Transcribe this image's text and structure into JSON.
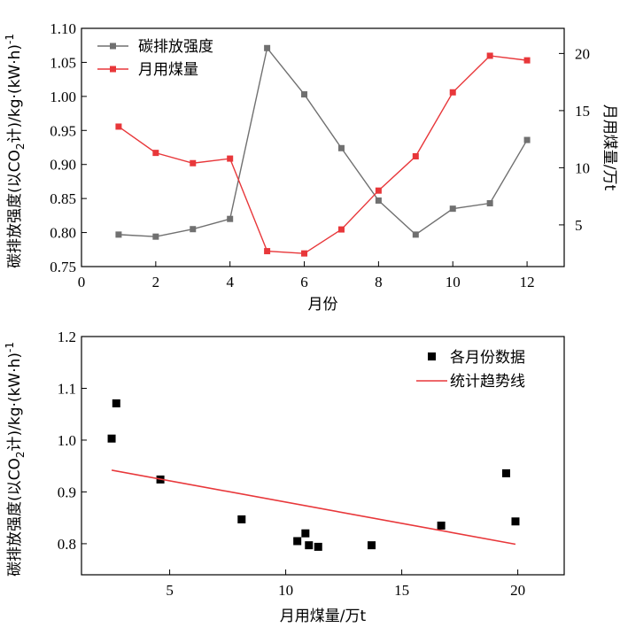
{
  "chart_data": [
    {
      "type": "line",
      "x": [
        1,
        2,
        3,
        4,
        5,
        6,
        7,
        8,
        9,
        10,
        11,
        12
      ],
      "xlabel": "月份",
      "xlim": [
        0,
        13
      ],
      "xticks": [
        "0",
        "2",
        "4",
        "6",
        "8",
        "10",
        "12"
      ],
      "xtick_values": [
        0,
        2,
        4,
        6,
        8,
        10,
        12
      ],
      "ylabel_left_parts": [
        "碳排放强度(以CO",
        "2",
        "计)/kg·(kW·h)",
        "-1"
      ],
      "ylim_left": [
        0.75,
        1.1
      ],
      "yticks_left": [
        "0.75",
        "0.80",
        "0.85",
        "0.90",
        "0.95",
        "1.00",
        "1.05",
        "1.10"
      ],
      "ytick_values_left": [
        0.75,
        0.8,
        0.85,
        0.9,
        0.95,
        1.0,
        1.05,
        1.1
      ],
      "ylabel_right": "月用煤量/万t",
      "ylim_right": [
        1.35,
        22.2
      ],
      "yticks_right": [
        "5",
        "10",
        "15",
        "20"
      ],
      "ytick_values_right": [
        5,
        10,
        15,
        20
      ],
      "legend_position": "top-left",
      "grid": false,
      "series": [
        {
          "name": "碳排放强度",
          "axis": "left",
          "color": "#707070",
          "marker": "square",
          "values": [
            0.797,
            0.794,
            0.805,
            0.82,
            1.071,
            1.003,
            0.924,
            0.847,
            0.797,
            0.835,
            0.843,
            0.936
          ]
        },
        {
          "name": "月用煤量",
          "axis": "right",
          "color": "#e8373a",
          "marker": "square",
          "values": [
            13.6,
            11.3,
            10.4,
            10.8,
            2.7,
            2.5,
            4.6,
            8.0,
            11.0,
            16.6,
            19.8,
            19.4
          ]
        }
      ]
    },
    {
      "type": "scatter",
      "xlabel": "月用煤量/万t",
      "xlim": [
        1.2,
        22
      ],
      "xticks": [
        "5",
        "10",
        "15",
        "20"
      ],
      "xtick_values": [
        5,
        10,
        15,
        20
      ],
      "ylabel_parts": [
        "碳排放强度(以CO",
        "2",
        "计)/kg·(kW·h)",
        "-1"
      ],
      "ylim": [
        0.74,
        1.2
      ],
      "yticks": [
        "0.8",
        "0.9",
        "1.0",
        "1.1",
        "1.2"
      ],
      "ytick_values": [
        0.8,
        0.9,
        1.0,
        1.1,
        1.2
      ],
      "legend_position": "top-right",
      "grid": false,
      "series": [
        {
          "name": "各月份数据",
          "color": "#000000",
          "marker": "square",
          "points": [
            [
              2.5,
              1.003
            ],
            [
              2.7,
              1.071
            ],
            [
              4.6,
              0.924
            ],
            [
              8.1,
              0.847
            ],
            [
              10.5,
              0.805
            ],
            [
              10.85,
              0.82
            ],
            [
              11.0,
              0.797
            ],
            [
              11.4,
              0.794
            ],
            [
              13.7,
              0.797
            ],
            [
              16.7,
              0.835
            ],
            [
              19.5,
              0.936
            ],
            [
              19.9,
              0.843
            ]
          ]
        },
        {
          "name": "统计趋势线",
          "color": "#e8373a",
          "type": "line",
          "points": [
            [
              2.5,
              0.942
            ],
            [
              19.9,
              0.799
            ]
          ]
        }
      ]
    }
  ]
}
